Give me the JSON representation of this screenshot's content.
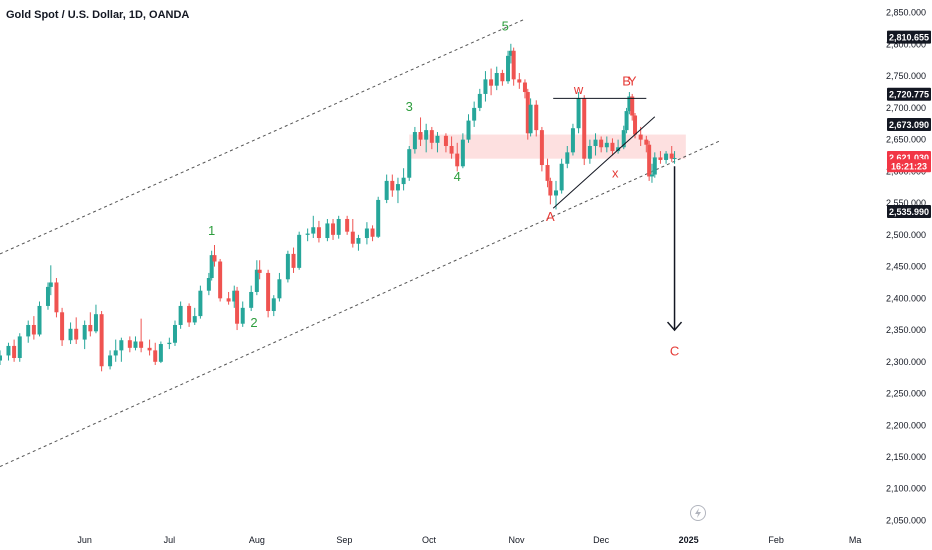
{
  "header": {
    "title": "Gold Spot / U.S. Dollar, 1D, OANDA"
  },
  "colors": {
    "up": "#26a69a",
    "down": "#ef5350",
    "wave_green": "#2e9e3e",
    "wave_red": "#e53935",
    "zone": "#fde0e0",
    "axis_bg": "#ffffff",
    "tag_dark": "#131722",
    "tag_red": "#f23645"
  },
  "icons": {
    "replay": "lightning-icon"
  },
  "chart_data": {
    "type": "candlestick",
    "y_axis": {
      "ticks": [
        2850,
        2800,
        2750,
        2700,
        2650,
        2600,
        2550,
        2500,
        2450,
        2400,
        2350,
        2300,
        2250,
        2200,
        2150,
        2100,
        2050
      ],
      "tick_labels": [
        "2,850.000",
        "2,800.000",
        "2,750.000",
        "2,700.000",
        "2,650.000",
        "2,600.000",
        "2,550.000",
        "2,500.000",
        "2,450.000",
        "2,400.000",
        "2,350.000",
        "2,300.000",
        "2,250.000",
        "2,200.000",
        "2,150.000",
        "2,100.000",
        "2,050.000"
      ],
      "range": [
        2035,
        2870
      ]
    },
    "x_axis": {
      "tick_labels": [
        "Jun",
        "Jul",
        "Aug",
        "Sep",
        "Oct",
        "Nov",
        "Dec",
        "2025",
        "Feb",
        "Ma"
      ],
      "tick_dates": [
        "2024-06-01",
        "2024-07-01",
        "2024-08-01",
        "2024-09-01",
        "2024-10-01",
        "2024-11-01",
        "2024-12-01",
        "2025-01-01",
        "2025-02-01",
        "2025-03-01"
      ],
      "range": [
        "2024-05-02",
        "2025-03-02"
      ]
    },
    "price_tags": [
      {
        "label": "2,810.655",
        "value": 2810.655,
        "style": "dark"
      },
      {
        "label": "2,720.775",
        "value": 2720.775,
        "style": "dark"
      },
      {
        "label": "2,673.090",
        "value": 2673.09,
        "style": "dark"
      },
      {
        "label": "2,621.030",
        "value": 2621.03,
        "style": "red"
      },
      {
        "label": "16:21:23",
        "value": 2608,
        "style": "red"
      },
      {
        "label": "2,535.990",
        "value": 2535.99,
        "style": "dark"
      }
    ],
    "candles": [
      {
        "d": "2024-05-02",
        "o": 2302,
        "h": 2318,
        "l": 2295,
        "c": 2310
      },
      {
        "d": "2024-05-05",
        "o": 2310,
        "h": 2330,
        "l": 2302,
        "c": 2325
      },
      {
        "d": "2024-05-07",
        "o": 2325,
        "h": 2335,
        "l": 2300,
        "c": 2306
      },
      {
        "d": "2024-05-09",
        "o": 2306,
        "h": 2345,
        "l": 2300,
        "c": 2340
      },
      {
        "d": "2024-05-12",
        "o": 2340,
        "h": 2365,
        "l": 2330,
        "c": 2358
      },
      {
        "d": "2024-05-14",
        "o": 2358,
        "h": 2372,
        "l": 2335,
        "c": 2343
      },
      {
        "d": "2024-05-16",
        "o": 2343,
        "h": 2395,
        "l": 2340,
        "c": 2388
      },
      {
        "d": "2024-05-19",
        "o": 2388,
        "h": 2425,
        "l": 2382,
        "c": 2418
      },
      {
        "d": "2024-05-20",
        "o": 2418,
        "h": 2452,
        "l": 2405,
        "c": 2425
      },
      {
        "d": "2024-05-22",
        "o": 2425,
        "h": 2432,
        "l": 2370,
        "c": 2378
      },
      {
        "d": "2024-05-24",
        "o": 2378,
        "h": 2385,
        "l": 2325,
        "c": 2334
      },
      {
        "d": "2024-05-27",
        "o": 2334,
        "h": 2362,
        "l": 2328,
        "c": 2352
      },
      {
        "d": "2024-05-29",
        "o": 2352,
        "h": 2370,
        "l": 2328,
        "c": 2335
      },
      {
        "d": "2024-06-01",
        "o": 2335,
        "h": 2365,
        "l": 2320,
        "c": 2358
      },
      {
        "d": "2024-06-03",
        "o": 2358,
        "h": 2378,
        "l": 2340,
        "c": 2348
      },
      {
        "d": "2024-06-05",
        "o": 2348,
        "h": 2390,
        "l": 2345,
        "c": 2375
      },
      {
        "d": "2024-06-07",
        "o": 2375,
        "h": 2380,
        "l": 2285,
        "c": 2293
      },
      {
        "d": "2024-06-10",
        "o": 2293,
        "h": 2318,
        "l": 2288,
        "c": 2310
      },
      {
        "d": "2024-06-12",
        "o": 2310,
        "h": 2335,
        "l": 2300,
        "c": 2318
      },
      {
        "d": "2024-06-14",
        "o": 2318,
        "h": 2338,
        "l": 2300,
        "c": 2334
      },
      {
        "d": "2024-06-17",
        "o": 2334,
        "h": 2340,
        "l": 2315,
        "c": 2322
      },
      {
        "d": "2024-06-19",
        "o": 2322,
        "h": 2340,
        "l": 2318,
        "c": 2332
      },
      {
        "d": "2024-06-21",
        "o": 2332,
        "h": 2368,
        "l": 2315,
        "c": 2322
      },
      {
        "d": "2024-06-24",
        "o": 2322,
        "h": 2335,
        "l": 2310,
        "c": 2318
      },
      {
        "d": "2024-06-26",
        "o": 2318,
        "h": 2330,
        "l": 2295,
        "c": 2300
      },
      {
        "d": "2024-06-28",
        "o": 2300,
        "h": 2332,
        "l": 2298,
        "c": 2328
      },
      {
        "d": "2024-07-01",
        "o": 2328,
        "h": 2338,
        "l": 2320,
        "c": 2330
      },
      {
        "d": "2024-07-03",
        "o": 2330,
        "h": 2365,
        "l": 2325,
        "c": 2358
      },
      {
        "d": "2024-07-05",
        "o": 2358,
        "h": 2395,
        "l": 2352,
        "c": 2388
      },
      {
        "d": "2024-07-08",
        "o": 2388,
        "h": 2392,
        "l": 2355,
        "c": 2362
      },
      {
        "d": "2024-07-10",
        "o": 2362,
        "h": 2385,
        "l": 2358,
        "c": 2372
      },
      {
        "d": "2024-07-12",
        "o": 2372,
        "h": 2420,
        "l": 2368,
        "c": 2412
      },
      {
        "d": "2024-07-15",
        "o": 2412,
        "h": 2440,
        "l": 2405,
        "c": 2432
      },
      {
        "d": "2024-07-16",
        "o": 2432,
        "h": 2475,
        "l": 2428,
        "c": 2468
      },
      {
        "d": "2024-07-17",
        "o": 2468,
        "h": 2484,
        "l": 2450,
        "c": 2458
      },
      {
        "d": "2024-07-19",
        "o": 2458,
        "h": 2462,
        "l": 2395,
        "c": 2400
      },
      {
        "d": "2024-07-22",
        "o": 2400,
        "h": 2410,
        "l": 2390,
        "c": 2395
      },
      {
        "d": "2024-07-24",
        "o": 2395,
        "h": 2420,
        "l": 2385,
        "c": 2412
      },
      {
        "d": "2024-07-25",
        "o": 2412,
        "h": 2418,
        "l": 2350,
        "c": 2360
      },
      {
        "d": "2024-07-27",
        "o": 2360,
        "h": 2395,
        "l": 2355,
        "c": 2385
      },
      {
        "d": "2024-07-30",
        "o": 2385,
        "h": 2420,
        "l": 2380,
        "c": 2410
      },
      {
        "d": "2024-08-01",
        "o": 2410,
        "h": 2460,
        "l": 2405,
        "c": 2445
      },
      {
        "d": "2024-08-02",
        "o": 2445,
        "h": 2460,
        "l": 2430,
        "c": 2440
      },
      {
        "d": "2024-08-05",
        "o": 2440,
        "h": 2445,
        "l": 2370,
        "c": 2380
      },
      {
        "d": "2024-08-07",
        "o": 2380,
        "h": 2405,
        "l": 2372,
        "c": 2400
      },
      {
        "d": "2024-08-09",
        "o": 2400,
        "h": 2440,
        "l": 2395,
        "c": 2430
      },
      {
        "d": "2024-08-12",
        "o": 2430,
        "h": 2475,
        "l": 2425,
        "c": 2470
      },
      {
        "d": "2024-08-14",
        "o": 2470,
        "h": 2480,
        "l": 2440,
        "c": 2448
      },
      {
        "d": "2024-08-16",
        "o": 2448,
        "h": 2505,
        "l": 2445,
        "c": 2500
      },
      {
        "d": "2024-08-19",
        "o": 2500,
        "h": 2510,
        "l": 2490,
        "c": 2502
      },
      {
        "d": "2024-08-21",
        "o": 2502,
        "h": 2530,
        "l": 2495,
        "c": 2512
      },
      {
        "d": "2024-08-23",
        "o": 2512,
        "h": 2522,
        "l": 2488,
        "c": 2495
      },
      {
        "d": "2024-08-26",
        "o": 2495,
        "h": 2525,
        "l": 2490,
        "c": 2518
      },
      {
        "d": "2024-08-28",
        "o": 2518,
        "h": 2525,
        "l": 2492,
        "c": 2500
      },
      {
        "d": "2024-08-30",
        "o": 2500,
        "h": 2530,
        "l": 2494,
        "c": 2525
      },
      {
        "d": "2024-09-02",
        "o": 2525,
        "h": 2530,
        "l": 2500,
        "c": 2505
      },
      {
        "d": "2024-09-04",
        "o": 2505,
        "h": 2525,
        "l": 2480,
        "c": 2486
      },
      {
        "d": "2024-09-06",
        "o": 2486,
        "h": 2500,
        "l": 2475,
        "c": 2495
      },
      {
        "d": "2024-09-09",
        "o": 2495,
        "h": 2520,
        "l": 2485,
        "c": 2510
      },
      {
        "d": "2024-09-11",
        "o": 2510,
        "h": 2515,
        "l": 2490,
        "c": 2497
      },
      {
        "d": "2024-09-13",
        "o": 2497,
        "h": 2560,
        "l": 2495,
        "c": 2555
      },
      {
        "d": "2024-09-16",
        "o": 2555,
        "h": 2595,
        "l": 2550,
        "c": 2585
      },
      {
        "d": "2024-09-18",
        "o": 2585,
        "h": 2595,
        "l": 2560,
        "c": 2570
      },
      {
        "d": "2024-09-20",
        "o": 2570,
        "h": 2590,
        "l": 2550,
        "c": 2580
      },
      {
        "d": "2024-09-22",
        "o": 2580,
        "h": 2605,
        "l": 2570,
        "c": 2590
      },
      {
        "d": "2024-09-24",
        "o": 2590,
        "h": 2640,
        "l": 2585,
        "c": 2635
      },
      {
        "d": "2024-09-26",
        "o": 2635,
        "h": 2670,
        "l": 2628,
        "c": 2662
      },
      {
        "d": "2024-09-28",
        "o": 2662,
        "h": 2685,
        "l": 2640,
        "c": 2650
      },
      {
        "d": "2024-09-30",
        "o": 2650,
        "h": 2675,
        "l": 2630,
        "c": 2665
      },
      {
        "d": "2024-10-02",
        "o": 2665,
        "h": 2670,
        "l": 2635,
        "c": 2645
      },
      {
        "d": "2024-10-04",
        "o": 2645,
        "h": 2662,
        "l": 2630,
        "c": 2656
      },
      {
        "d": "2024-10-07",
        "o": 2656,
        "h": 2660,
        "l": 2630,
        "c": 2640
      },
      {
        "d": "2024-10-09",
        "o": 2640,
        "h": 2655,
        "l": 2620,
        "c": 2628
      },
      {
        "d": "2024-10-11",
        "o": 2628,
        "h": 2645,
        "l": 2600,
        "c": 2608
      },
      {
        "d": "2024-10-13",
        "o": 2608,
        "h": 2660,
        "l": 2605,
        "c": 2650
      },
      {
        "d": "2024-10-15",
        "o": 2650,
        "h": 2690,
        "l": 2645,
        "c": 2680
      },
      {
        "d": "2024-10-17",
        "o": 2680,
        "h": 2710,
        "l": 2670,
        "c": 2700
      },
      {
        "d": "2024-10-19",
        "o": 2700,
        "h": 2730,
        "l": 2695,
        "c": 2722
      },
      {
        "d": "2024-10-21",
        "o": 2722,
        "h": 2758,
        "l": 2710,
        "c": 2745
      },
      {
        "d": "2024-10-23",
        "o": 2745,
        "h": 2762,
        "l": 2720,
        "c": 2735
      },
      {
        "d": "2024-10-25",
        "o": 2735,
        "h": 2765,
        "l": 2728,
        "c": 2755
      },
      {
        "d": "2024-10-27",
        "o": 2755,
        "h": 2760,
        "l": 2735,
        "c": 2742
      },
      {
        "d": "2024-10-29",
        "o": 2742,
        "h": 2790,
        "l": 2738,
        "c": 2782
      },
      {
        "d": "2024-10-30",
        "o": 2782,
        "h": 2801,
        "l": 2770,
        "c": 2790
      },
      {
        "d": "2024-10-31",
        "o": 2790,
        "h": 2795,
        "l": 2735,
        "c": 2745
      },
      {
        "d": "2024-11-02",
        "o": 2745,
        "h": 2755,
        "l": 2730,
        "c": 2740
      },
      {
        "d": "2024-11-04",
        "o": 2740,
        "h": 2745,
        "l": 2715,
        "c": 2725
      },
      {
        "d": "2024-11-05",
        "o": 2725,
        "h": 2730,
        "l": 2650,
        "c": 2660
      },
      {
        "d": "2024-11-06",
        "o": 2660,
        "h": 2715,
        "l": 2655,
        "c": 2705
      },
      {
        "d": "2024-11-08",
        "o": 2705,
        "h": 2712,
        "l": 2655,
        "c": 2665
      },
      {
        "d": "2024-11-10",
        "o": 2665,
        "h": 2670,
        "l": 2600,
        "c": 2610
      },
      {
        "d": "2024-11-12",
        "o": 2610,
        "h": 2620,
        "l": 2575,
        "c": 2585
      },
      {
        "d": "2024-11-13",
        "o": 2585,
        "h": 2590,
        "l": 2548,
        "c": 2562
      },
      {
        "d": "2024-11-15",
        "o": 2562,
        "h": 2585,
        "l": 2540,
        "c": 2570
      },
      {
        "d": "2024-11-17",
        "o": 2570,
        "h": 2620,
        "l": 2565,
        "c": 2612
      },
      {
        "d": "2024-11-19",
        "o": 2612,
        "h": 2640,
        "l": 2605,
        "c": 2630
      },
      {
        "d": "2024-11-21",
        "o": 2630,
        "h": 2675,
        "l": 2625,
        "c": 2668
      },
      {
        "d": "2024-11-23",
        "o": 2668,
        "h": 2725,
        "l": 2660,
        "c": 2715
      },
      {
        "d": "2024-11-25",
        "o": 2715,
        "h": 2720,
        "l": 2610,
        "c": 2620
      },
      {
        "d": "2024-11-27",
        "o": 2620,
        "h": 2650,
        "l": 2612,
        "c": 2640
      },
      {
        "d": "2024-11-29",
        "o": 2640,
        "h": 2660,
        "l": 2625,
        "c": 2650
      },
      {
        "d": "2024-12-01",
        "o": 2650,
        "h": 2655,
        "l": 2630,
        "c": 2638
      },
      {
        "d": "2024-12-03",
        "o": 2638,
        "h": 2655,
        "l": 2630,
        "c": 2645
      },
      {
        "d": "2024-12-05",
        "o": 2645,
        "h": 2652,
        "l": 2625,
        "c": 2632
      },
      {
        "d": "2024-12-07",
        "o": 2632,
        "h": 2650,
        "l": 2628,
        "c": 2638
      },
      {
        "d": "2024-12-09",
        "o": 2638,
        "h": 2672,
        "l": 2635,
        "c": 2665
      },
      {
        "d": "2024-12-10",
        "o": 2665,
        "h": 2700,
        "l": 2660,
        "c": 2695
      },
      {
        "d": "2024-12-11",
        "o": 2695,
        "h": 2725,
        "l": 2690,
        "c": 2718
      },
      {
        "d": "2024-12-12",
        "o": 2718,
        "h": 2722,
        "l": 2680,
        "c": 2688
      },
      {
        "d": "2024-12-13",
        "o": 2688,
        "h": 2692,
        "l": 2652,
        "c": 2658
      },
      {
        "d": "2024-12-15",
        "o": 2658,
        "h": 2670,
        "l": 2640,
        "c": 2650
      },
      {
        "d": "2024-12-17",
        "o": 2650,
        "h": 2656,
        "l": 2630,
        "c": 2642
      },
      {
        "d": "2024-12-18",
        "o": 2642,
        "h": 2648,
        "l": 2585,
        "c": 2592
      },
      {
        "d": "2024-12-19",
        "o": 2592,
        "h": 2612,
        "l": 2582,
        "c": 2595
      },
      {
        "d": "2024-12-20",
        "o": 2595,
        "h": 2630,
        "l": 2590,
        "c": 2622
      },
      {
        "d": "2024-12-22",
        "o": 2622,
        "h": 2632,
        "l": 2612,
        "c": 2618
      },
      {
        "d": "2024-12-24",
        "o": 2618,
        "h": 2632,
        "l": 2612,
        "c": 2628
      },
      {
        "d": "2024-12-26",
        "o": 2628,
        "h": 2640,
        "l": 2615,
        "c": 2620
      },
      {
        "d": "2024-12-27",
        "o": 2620,
        "h": 2632,
        "l": 2612,
        "c": 2621
      }
    ],
    "zone": {
      "from": 2620,
      "to": 2658,
      "start": "2024-09-24",
      "end": "2024-12-31"
    },
    "channel_upper": [
      {
        "d": "2024-05-02",
        "v": 2470
      },
      {
        "d": "2024-11-04",
        "v": 2840
      }
    ],
    "channel_lower": [
      {
        "d": "2024-05-02",
        "v": 2135
      },
      {
        "d": "2025-01-12",
        "v": 2648
      }
    ],
    "lines": [
      {
        "name": "triangle-top-line",
        "from": {
          "d": "2024-11-14",
          "v": 2715
        },
        "to": {
          "d": "2024-12-17",
          "v": 2715
        },
        "style": "solid"
      },
      {
        "name": "triangle-bottom-line",
        "from": {
          "d": "2024-11-14",
          "v": 2542
        },
        "to": {
          "d": "2024-12-20",
          "v": 2686
        },
        "style": "solid"
      }
    ],
    "arrow": {
      "from": {
        "d": "2024-12-27",
        "v": 2608
      },
      "to": {
        "d": "2024-12-27",
        "v": 2350
      }
    },
    "wave_labels": [
      {
        "text": "1",
        "d": "2024-07-16",
        "v": 2500,
        "color": "green"
      },
      {
        "text": "2",
        "d": "2024-07-31",
        "v": 2355,
        "color": "green"
      },
      {
        "text": "3",
        "d": "2024-09-24",
        "v": 2695,
        "color": "green"
      },
      {
        "text": "4",
        "d": "2024-10-11",
        "v": 2585,
        "color": "green"
      },
      {
        "text": "5",
        "d": "2024-10-28",
        "v": 2822,
        "color": "green"
      },
      {
        "text": "w",
        "d": "2024-11-23",
        "v": 2722,
        "color": "red"
      },
      {
        "text": "A",
        "d": "2024-11-13",
        "v": 2522,
        "color": "red"
      },
      {
        "text": "x",
        "d": "2024-12-06",
        "v": 2590,
        "color": "red"
      },
      {
        "text": "B",
        "d": "2024-12-10",
        "v": 2735,
        "color": "red"
      },
      {
        "text": "Y",
        "d": "2024-12-12",
        "v": 2735,
        "color": "red"
      },
      {
        "text": "C",
        "d": "2024-12-27",
        "v": 2310,
        "color": "red"
      }
    ]
  }
}
